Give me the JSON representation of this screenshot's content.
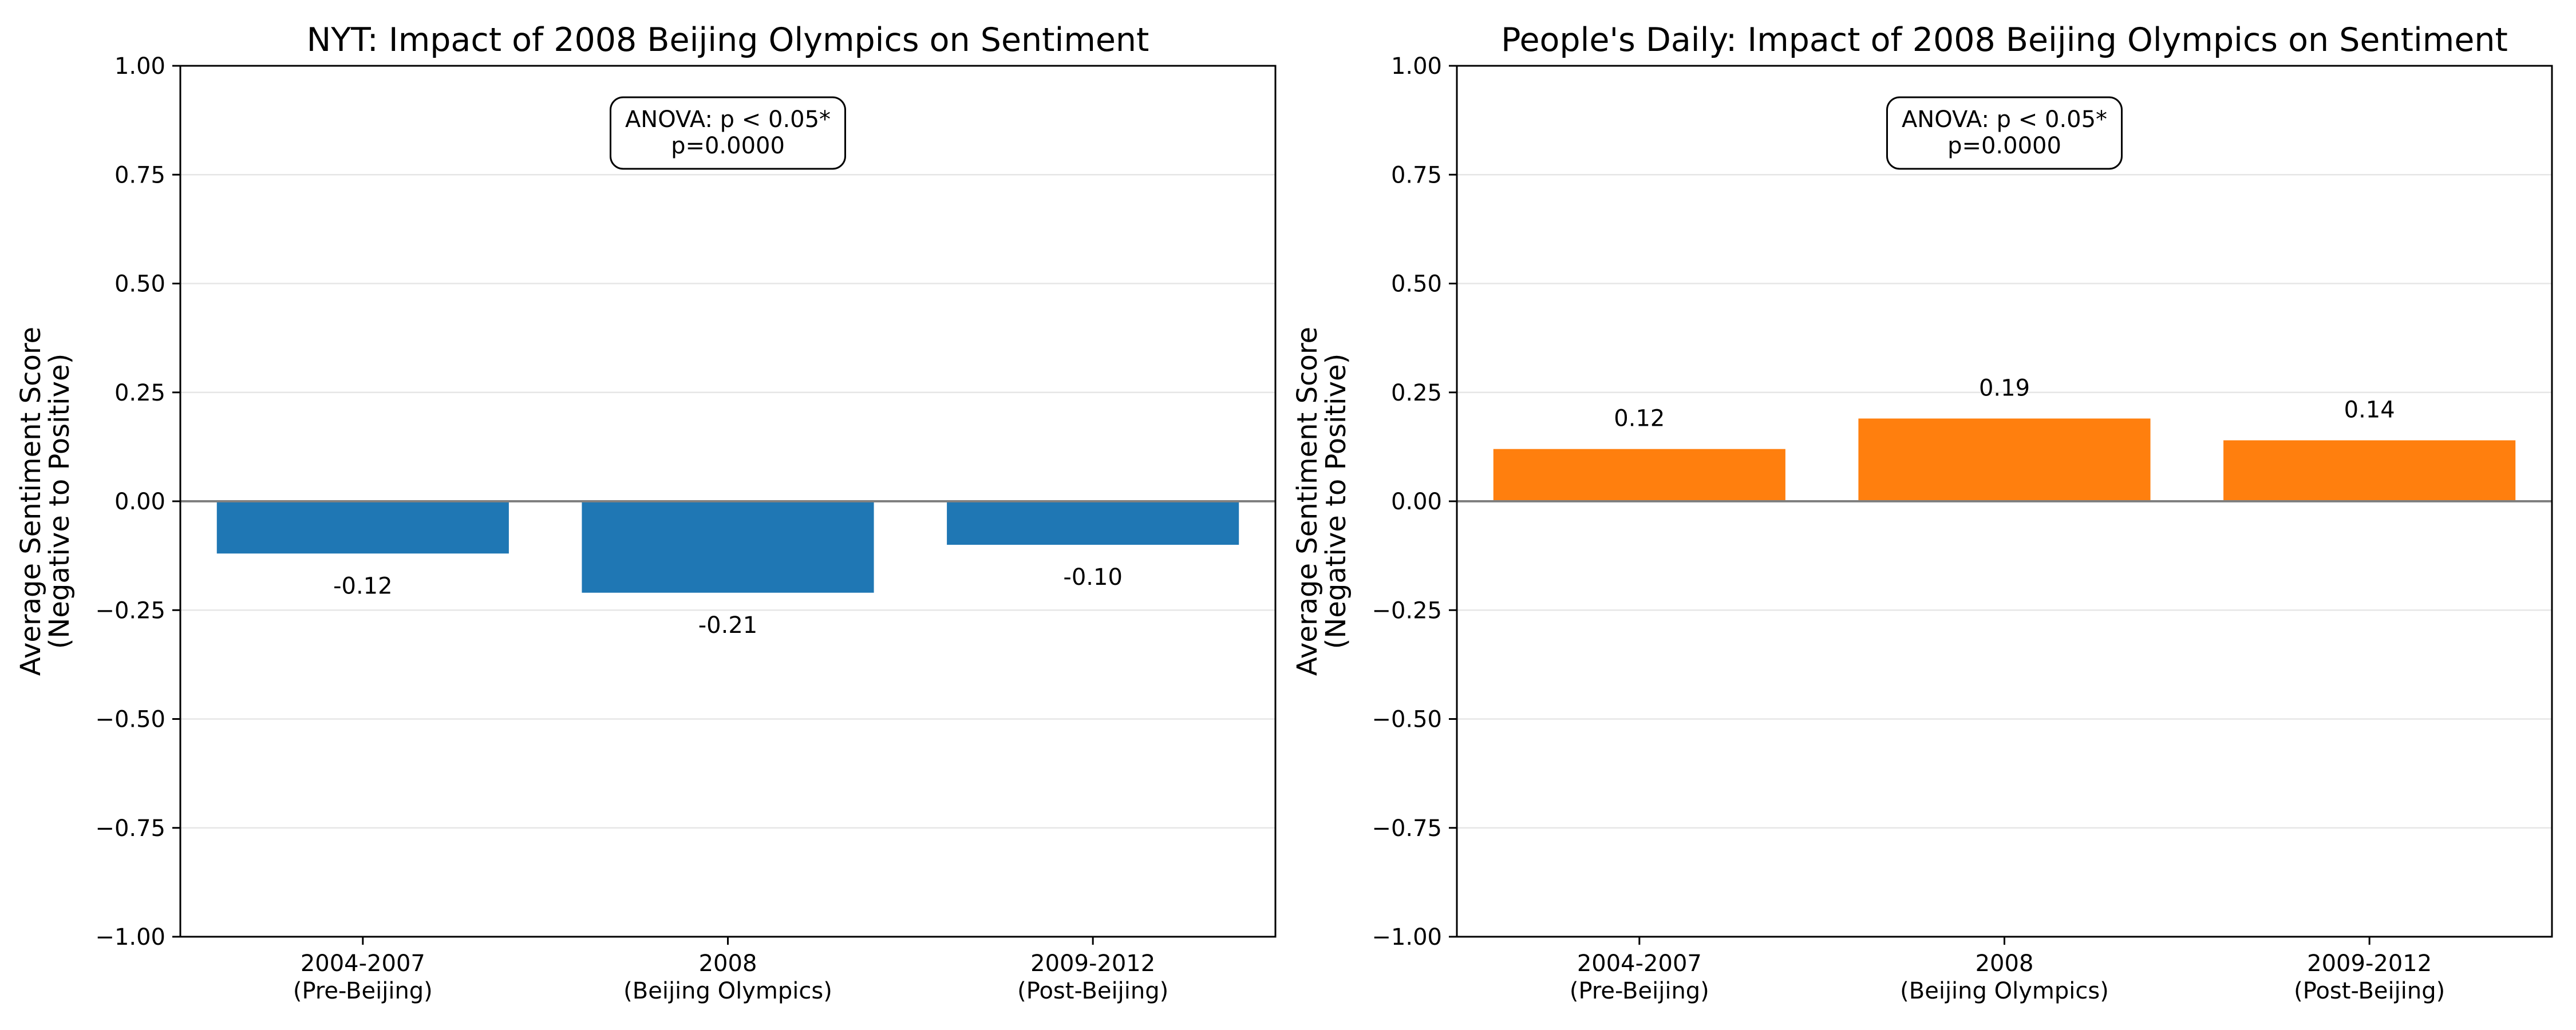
{
  "chart_data": [
    {
      "type": "bar",
      "title": "NYT: Impact of 2008 Beijing Olympics on Sentiment",
      "ylabel": [
        "Average Sentiment Score",
        "(Negative to Positive)"
      ],
      "xlabel": "",
      "categories": [
        [
          "2004-2007",
          "(Pre-Beijing)"
        ],
        [
          "2008",
          "(Beijing Olympics)"
        ],
        [
          "2009-2012",
          "(Post-Beijing)"
        ]
      ],
      "values": [
        -0.12,
        -0.21,
        -0.1
      ],
      "value_labels": [
        "-0.12",
        "-0.21",
        "-0.10"
      ],
      "ylim": [
        -1.0,
        1.0
      ],
      "yticks": [
        -1.0,
        -0.75,
        -0.5,
        -0.25,
        0.0,
        0.25,
        0.5,
        0.75,
        1.0
      ],
      "ytick_labels": [
        "−1.00",
        "−0.75",
        "−0.50",
        "−0.25",
        "0.00",
        "0.25",
        "0.50",
        "0.75",
        "1.00"
      ],
      "color": "#1f77b4",
      "grid": "y",
      "annotation": [
        "ANOVA: p < 0.05*",
        "p=0.0000"
      ]
    },
    {
      "type": "bar",
      "title": "People's Daily: Impact of 2008 Beijing Olympics on Sentiment",
      "ylabel": [
        "Average Sentiment Score",
        "(Negative to Positive)"
      ],
      "xlabel": "",
      "categories": [
        [
          "2004-2007",
          "(Pre-Beijing)"
        ],
        [
          "2008",
          "(Beijing Olympics)"
        ],
        [
          "2009-2012",
          "(Post-Beijing)"
        ]
      ],
      "values": [
        0.12,
        0.19,
        0.14
      ],
      "value_labels": [
        "0.12",
        "0.19",
        "0.14"
      ],
      "ylim": [
        -1.0,
        1.0
      ],
      "yticks": [
        -1.0,
        -0.75,
        -0.5,
        -0.25,
        0.0,
        0.25,
        0.5,
        0.75,
        1.0
      ],
      "ytick_labels": [
        "−1.00",
        "−0.75",
        "−0.50",
        "−0.25",
        "0.00",
        "0.25",
        "0.50",
        "0.75",
        "1.00"
      ],
      "color": "#ff7f0e",
      "grid": "y",
      "annotation": [
        "ANOVA: p < 0.05*",
        "p=0.0000"
      ]
    }
  ]
}
